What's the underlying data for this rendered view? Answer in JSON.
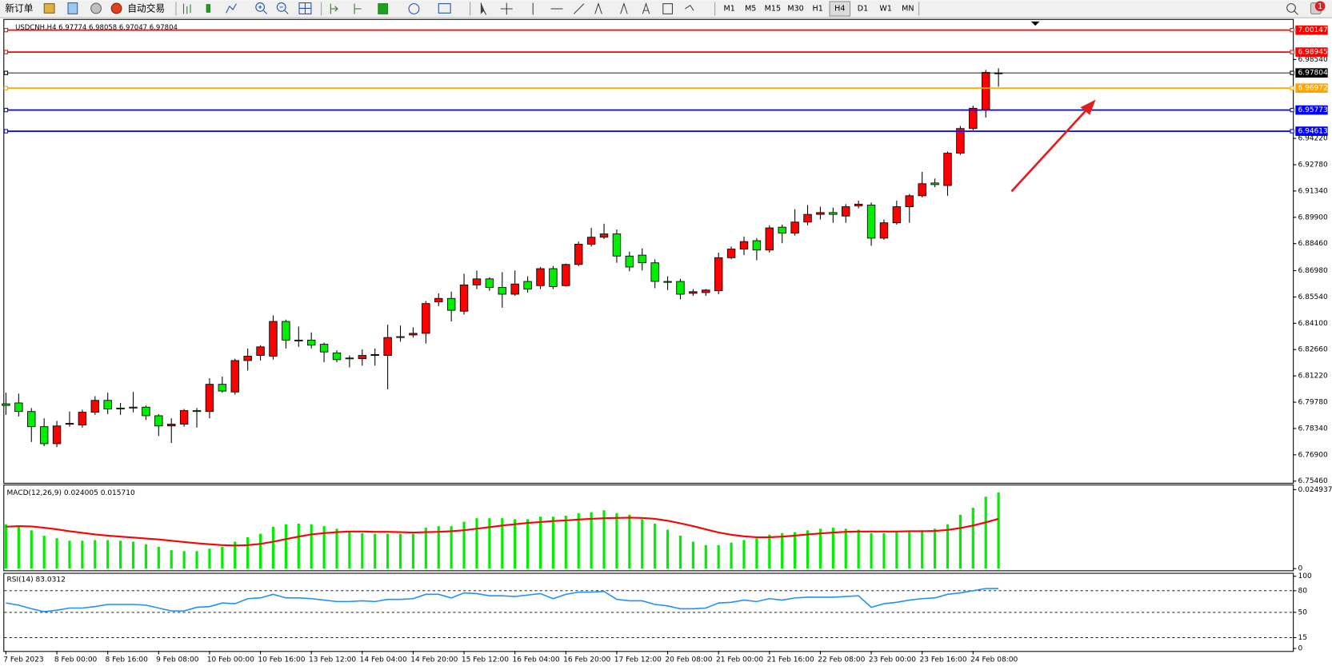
{
  "toolbar": {
    "new_order": "新订单",
    "auto_trading": "自动交易",
    "timeframes": [
      "M1",
      "M5",
      "M15",
      "M30",
      "H1",
      "H4",
      "D1",
      "W1",
      "MN"
    ],
    "notifications": "1"
  },
  "chart_data": [
    {
      "type": "candlestick",
      "title": "USDCNH,H4  6.97774 6.98058 6.97047 6.97804",
      "up_color": "#ff0000",
      "down_color": "#00ee00",
      "categories": [
        "7 Feb 2023",
        null,
        null,
        null,
        "8 Feb 00:00",
        null,
        null,
        null,
        "8 Feb 16:00",
        null,
        null,
        null,
        "9 Feb 08:00",
        null,
        null,
        null,
        "10 Feb 00:00",
        null,
        null,
        null,
        "10 Feb 16:00",
        null,
        null,
        null,
        "13 Feb 12:00",
        null,
        null,
        null,
        "14 Feb 04:00",
        null,
        null,
        null,
        "14 Feb 20:00",
        null,
        null,
        null,
        "15 Feb 12:00",
        null,
        null,
        null,
        "16 Feb 04:00",
        null,
        null,
        null,
        "16 Feb 20:00",
        null,
        null,
        null,
        "17 Feb 12:00",
        null,
        null,
        null,
        "20 Feb 08:00",
        null,
        null,
        null,
        "21 Feb 00:00",
        null,
        null,
        null,
        "21 Feb 16:00",
        null,
        null,
        null,
        "22 Feb 08:00",
        null,
        null,
        null,
        "23 Feb 00:00",
        null,
        null,
        null,
        "23 Feb 16:00",
        null,
        null,
        null,
        "24 Feb 08:00",
        null,
        null
      ],
      "open": [
        6.7969,
        6.7974,
        6.7927,
        6.7844,
        6.7751,
        6.7858,
        6.7853,
        6.7923,
        6.7988,
        6.7946,
        6.7951,
        6.7951,
        6.7904,
        6.7848,
        6.7858,
        6.7932,
        6.7927,
        6.8076,
        6.8034,
        6.8206,
        6.8234,
        6.823,
        6.842,
        6.8318,
        6.8318,
        6.8295,
        6.8248,
        6.822,
        6.8216,
        6.8234,
        6.8234,
        6.8337,
        6.8346,
        6.8355,
        6.8527,
        6.8546,
        6.8476,
        6.862,
        6.8653,
        6.8606,
        6.8569,
        6.8639,
        6.8616,
        6.8709,
        6.8616,
        6.8732,
        6.8843,
        6.8881,
        6.8899,
        6.8778,
        6.8783,
        6.8741,
        6.8639,
        6.8639,
        6.8574,
        6.8578,
        6.8588,
        6.8769,
        6.8816,
        6.8862,
        6.8811,
        6.8936,
        6.8904,
        6.8964,
        6.9006,
        6.9016,
        6.8997,
        6.9053,
        6.9057,
        6.8876,
        6.896,
        6.9048,
        6.9108,
        6.9178,
        6.9164,
        6.9341,
        6.9476,
        6.9578,
        6.97774
      ],
      "high": [
        6.803,
        6.8025,
        6.7946,
        6.789,
        6.7876,
        6.7927,
        6.7937,
        6.8011,
        6.803,
        6.7974,
        6.8034,
        6.796,
        6.7913,
        6.789,
        6.7941,
        6.7946,
        6.8109,
        6.8118,
        6.8216,
        6.8272,
        6.829,
        6.8453,
        6.843,
        6.8392,
        6.836,
        6.8304,
        6.8262,
        6.8234,
        6.8267,
        6.8272,
        6.8402,
        6.8397,
        6.8388,
        6.8532,
        6.8574,
        6.8583,
        6.8681,
        6.8699,
        6.8662,
        6.869,
        6.8699,
        6.8667,
        6.8718,
        6.8723,
        6.8737,
        6.8857,
        6.8932,
        6.8955,
        6.8923,
        6.8802,
        6.882,
        6.876,
        6.8667,
        6.8653,
        6.8597,
        6.8597,
        6.8797,
        6.883,
        6.8885,
        6.8876,
        6.8946,
        6.895,
        6.9034,
        6.9057,
        6.9048,
        6.9043,
        6.9062,
        6.9081,
        6.9071,
        6.8978,
        6.9081,
        6.9118,
        6.9239,
        6.9202,
        6.935,
        6.949,
        6.9601,
        6.9797,
        6.98058
      ],
      "low": [
        6.7909,
        6.79,
        6.776,
        6.7737,
        6.7732,
        6.7844,
        6.7839,
        6.7909,
        6.7913,
        6.7909,
        6.7923,
        6.7881,
        6.7793,
        6.7755,
        6.7844,
        6.7839,
        6.789,
        6.803,
        6.802,
        6.8151,
        6.8206,
        6.8211,
        6.8272,
        6.8281,
        6.8272,
        6.8197,
        6.8197,
        6.8169,
        6.8178,
        6.8178,
        6.8048,
        6.8309,
        6.8332,
        6.8299,
        6.8504,
        6.842,
        6.8458,
        6.8597,
        6.8588,
        6.8495,
        6.856,
        6.8578,
        6.8597,
        6.8597,
        6.8611,
        6.8723,
        6.883,
        6.8871,
        6.8741,
        6.8695,
        6.8699,
        6.8602,
        6.8592,
        6.8541,
        6.856,
        6.856,
        6.8569,
        6.876,
        6.8783,
        6.8755,
        6.8797,
        6.8848,
        6.889,
        6.8946,
        6.8978,
        6.896,
        6.896,
        6.9039,
        6.8834,
        6.8867,
        6.895,
        6.896,
        6.9099,
        6.9155,
        6.9108,
        6.9332,
        6.9467,
        6.9536,
        6.97047
      ],
      "close": [
        6.796,
        6.7927,
        6.7844,
        6.7751,
        6.7848,
        6.7862,
        6.7923,
        6.7988,
        6.7941,
        6.7941,
        6.7946,
        6.7904,
        6.7848,
        6.7858,
        6.7932,
        6.7927,
        6.8076,
        6.8039,
        6.8206,
        6.823,
        6.8281,
        6.842,
        6.8318,
        6.8313,
        6.829,
        6.8253,
        6.8211,
        6.8216,
        6.8234,
        6.8239,
        6.8332,
        6.8332,
        6.8355,
        6.8518,
        6.8546,
        6.8481,
        6.862,
        6.8653,
        6.8606,
        6.8569,
        6.8625,
        6.8597,
        6.8709,
        6.8611,
        6.8732,
        6.8843,
        6.8881,
        6.8899,
        6.8778,
        6.8718,
        6.8741,
        6.8639,
        6.8634,
        6.8569,
        6.8583,
        6.8592,
        6.8769,
        6.8816,
        6.8857,
        6.8811,
        6.8932,
        6.8904,
        6.8964,
        6.9006,
        6.9016,
        6.9006,
        6.9048,
        6.9062,
        6.8876,
        6.896,
        6.9048,
        6.9108,
        6.9174,
        6.9169,
        6.9341,
        6.9476,
        6.9587,
        6.9783,
        6.97804
      ],
      "levels": [
        {
          "value": 7.00147,
          "color": "#ff0000"
        },
        {
          "value": 6.98945,
          "color": "#ff0000"
        },
        {
          "value": 6.97804,
          "color": "#000000"
        },
        {
          "value": 6.96972,
          "color": "#ffa500"
        },
        {
          "value": 6.95773,
          "color": "#0000ff"
        },
        {
          "value": 6.94613,
          "color": "#0000ff"
        }
      ],
      "ylim": [
        6.7546,
        7.0071
      ],
      "yticks": [
        {
          "value": 6.9854,
          "label": "6.98540"
        },
        {
          "value": 6.9422,
          "label": "6.94220"
        },
        {
          "value": 6.9278,
          "label": "6.92780"
        },
        {
          "value": 6.9134,
          "label": "6.91340"
        },
        {
          "value": 6.899,
          "label": "6.89900"
        },
        {
          "value": 6.8846,
          "label": "6.88460"
        },
        {
          "value": 6.8698,
          "label": "6.86980"
        },
        {
          "value": 6.8554,
          "label": "6.85540"
        },
        {
          "value": 6.841,
          "label": "6.84100"
        },
        {
          "value": 6.8266,
          "label": "6.82660"
        },
        {
          "value": 6.8122,
          "label": "6.81220"
        },
        {
          "value": 6.7978,
          "label": "6.79780"
        },
        {
          "value": 6.7834,
          "label": "6.78340"
        },
        {
          "value": 6.769,
          "label": "6.76900"
        },
        {
          "value": 6.7546,
          "label": "6.75460"
        }
      ]
    },
    {
      "type": "macd",
      "title": "MACD(12,26,9) 0.024005 0.015710",
      "ylim": [
        0,
        0.026
      ],
      "yticks": [
        0,
        0.024937
      ],
      "series": [
        {
          "style": "bar",
          "color": "#00ee00",
          "values": [
            0.014,
            0.0132,
            0.0121,
            0.0104,
            0.0096,
            0.0088,
            0.0088,
            0.009,
            0.009,
            0.0088,
            0.0085,
            0.0077,
            0.0069,
            0.0058,
            0.0055,
            0.0055,
            0.0063,
            0.0069,
            0.0085,
            0.0099,
            0.011,
            0.0132,
            0.014,
            0.0142,
            0.014,
            0.0134,
            0.0126,
            0.0118,
            0.0112,
            0.011,
            0.011,
            0.011,
            0.011,
            0.0129,
            0.0134,
            0.0134,
            0.0148,
            0.0159,
            0.0159,
            0.0159,
            0.0156,
            0.0156,
            0.0164,
            0.0164,
            0.0167,
            0.0175,
            0.0178,
            0.0184,
            0.0175,
            0.017,
            0.0156,
            0.0142,
            0.0123,
            0.0104,
            0.0085,
            0.0074,
            0.0074,
            0.0082,
            0.009,
            0.0096,
            0.0107,
            0.0112,
            0.0115,
            0.0121,
            0.0126,
            0.0129,
            0.0126,
            0.0123,
            0.0112,
            0.0112,
            0.0115,
            0.0115,
            0.0121,
            0.0126,
            0.014,
            0.017,
            0.0192,
            0.0227,
            0.024005
          ]
        },
        {
          "style": "line",
          "color": "#ff0000",
          "values": [
            0.0132,
            0.0134,
            0.0133,
            0.0129,
            0.0124,
            0.0118,
            0.0113,
            0.0108,
            0.0104,
            0.0101,
            0.0098,
            0.0095,
            0.0092,
            0.0088,
            0.0084,
            0.008,
            0.0077,
            0.0074,
            0.0073,
            0.0074,
            0.0078,
            0.0085,
            0.0093,
            0.0101,
            0.0108,
            0.0112,
            0.0115,
            0.0117,
            0.0117,
            0.0116,
            0.0116,
            0.0115,
            0.0114,
            0.0115,
            0.0116,
            0.0118,
            0.0121,
            0.0126,
            0.0131,
            0.0136,
            0.014,
            0.0144,
            0.0147,
            0.015,
            0.0152,
            0.0155,
            0.0157,
            0.0159,
            0.016,
            0.0161,
            0.016,
            0.0157,
            0.0151,
            0.0143,
            0.0134,
            0.0124,
            0.0114,
            0.0107,
            0.0102,
            0.0099,
            0.0099,
            0.0101,
            0.0104,
            0.0108,
            0.0111,
            0.0114,
            0.0116,
            0.0117,
            0.0117,
            0.0117,
            0.0117,
            0.0118,
            0.0118,
            0.0119,
            0.0122,
            0.0128,
            0.0136,
            0.0146,
            0.01571
          ]
        }
      ]
    },
    {
      "type": "line",
      "title": "RSI(14) 83.0312",
      "ylim": [
        0,
        100
      ],
      "yticks": [
        0,
        15,
        50,
        80,
        100
      ],
      "series": [
        {
          "color": "#1e90ff",
          "values": [
            63,
            60,
            55,
            51,
            53,
            56,
            56,
            58,
            61,
            61,
            61,
            60,
            56,
            52,
            52,
            57,
            58,
            63,
            62,
            69,
            70,
            75,
            70,
            70,
            69,
            67,
            65,
            65,
            66,
            65,
            68,
            68,
            69,
            75,
            75,
            70,
            77,
            76,
            73,
            73,
            72,
            74,
            76,
            69,
            75,
            78,
            78,
            79,
            68,
            66,
            66,
            61,
            59,
            55,
            55,
            56,
            63,
            64,
            67,
            65,
            69,
            67,
            70,
            71,
            71,
            71,
            72,
            73,
            57,
            62,
            64,
            67,
            69,
            70,
            75,
            77,
            80,
            83,
            83.0312
          ]
        }
      ]
    }
  ]
}
